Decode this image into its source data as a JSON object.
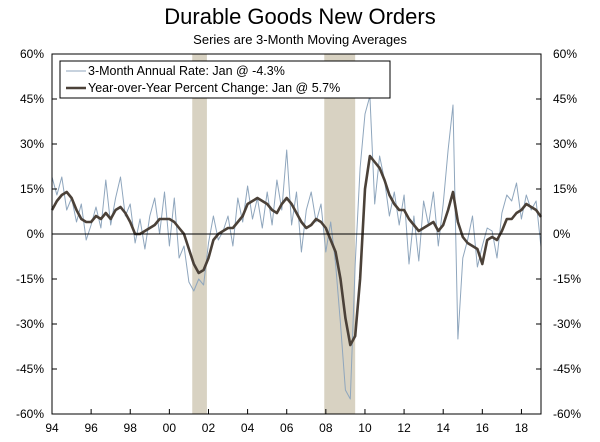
{
  "chart_data": {
    "type": "line",
    "title": "Durable Goods New Orders",
    "subtitle": "Series are 3-Month Moving Averages",
    "xlabel": "",
    "ylabel": "",
    "xlim": [
      1994.0,
      2019.0
    ],
    "ylim": [
      -60,
      60
    ],
    "x_ticks": [
      1994,
      1996,
      1998,
      2000,
      2002,
      2004,
      2006,
      2008,
      2010,
      2012,
      2014,
      2016,
      2018
    ],
    "x_tick_labels": [
      "94",
      "96",
      "98",
      "00",
      "02",
      "04",
      "06",
      "08",
      "10",
      "12",
      "14",
      "16",
      "18"
    ],
    "y_ticks": [
      -60,
      -45,
      -30,
      -15,
      0,
      15,
      30,
      45,
      60
    ],
    "y_tick_labels": [
      "-60%",
      "-45%",
      "-30%",
      "-15%",
      "0%",
      "15%",
      "30%",
      "45%",
      "60%"
    ],
    "recessions": [
      [
        2001.17,
        2001.92
      ],
      [
        2007.92,
        2009.5
      ]
    ],
    "colors": {
      "recession": "#d8d2c2",
      "annual_rate": "#8fa6bd",
      "yoy": "#4b4138",
      "axis": "#000000",
      "zero_line": "#000000"
    },
    "series": [
      {
        "name": "3-Month Annual Rate: Jan @ -4.3%",
        "values": [
          [
            1994.0,
            19
          ],
          [
            1994.25,
            13
          ],
          [
            1994.5,
            19
          ],
          [
            1994.75,
            8
          ],
          [
            1995.0,
            12
          ],
          [
            1995.25,
            4
          ],
          [
            1995.5,
            10
          ],
          [
            1995.75,
            -2
          ],
          [
            1996.0,
            3
          ],
          [
            1996.25,
            9
          ],
          [
            1996.5,
            2
          ],
          [
            1996.75,
            18
          ],
          [
            1997.0,
            3
          ],
          [
            1997.25,
            12
          ],
          [
            1997.5,
            19
          ],
          [
            1997.75,
            6
          ],
          [
            1998.0,
            10
          ],
          [
            1998.25,
            -3
          ],
          [
            1998.5,
            5
          ],
          [
            1998.75,
            -5
          ],
          [
            1999.0,
            6
          ],
          [
            1999.25,
            12
          ],
          [
            1999.5,
            0
          ],
          [
            1999.75,
            14
          ],
          [
            2000.0,
            -4
          ],
          [
            2000.25,
            12
          ],
          [
            2000.5,
            -8
          ],
          [
            2000.75,
            -4
          ],
          [
            2001.0,
            -16
          ],
          [
            2001.25,
            -19
          ],
          [
            2001.5,
            -15
          ],
          [
            2001.75,
            -17
          ],
          [
            2002.0,
            -3
          ],
          [
            2002.25,
            6
          ],
          [
            2002.5,
            -2
          ],
          [
            2002.75,
            1
          ],
          [
            2003.0,
            6
          ],
          [
            2003.25,
            -4
          ],
          [
            2003.5,
            12
          ],
          [
            2003.75,
            4
          ],
          [
            2004.0,
            16
          ],
          [
            2004.25,
            5
          ],
          [
            2004.5,
            12
          ],
          [
            2004.75,
            2
          ],
          [
            2005.0,
            14
          ],
          [
            2005.25,
            3
          ],
          [
            2005.5,
            18
          ],
          [
            2005.75,
            8
          ],
          [
            2006.0,
            28
          ],
          [
            2006.25,
            3
          ],
          [
            2006.5,
            14
          ],
          [
            2006.75,
            -6
          ],
          [
            2007.0,
            8
          ],
          [
            2007.25,
            14
          ],
          [
            2007.5,
            4
          ],
          [
            2007.75,
            10
          ],
          [
            2008.0,
            -6
          ],
          [
            2008.25,
            4
          ],
          [
            2008.5,
            -10
          ],
          [
            2008.75,
            -30
          ],
          [
            2009.0,
            -52
          ],
          [
            2009.25,
            -55
          ],
          [
            2009.5,
            -10
          ],
          [
            2009.75,
            22
          ],
          [
            2010.0,
            40
          ],
          [
            2010.25,
            46
          ],
          [
            2010.5,
            10
          ],
          [
            2010.75,
            26
          ],
          [
            2011.0,
            18
          ],
          [
            2011.25,
            6
          ],
          [
            2011.5,
            14
          ],
          [
            2011.75,
            3
          ],
          [
            2012.0,
            13
          ],
          [
            2012.25,
            -10
          ],
          [
            2012.5,
            6
          ],
          [
            2012.75,
            -9
          ],
          [
            2013.0,
            11
          ],
          [
            2013.25,
            3
          ],
          [
            2013.5,
            14
          ],
          [
            2013.75,
            -4
          ],
          [
            2014.0,
            10
          ],
          [
            2014.25,
            28
          ],
          [
            2014.5,
            43
          ],
          [
            2014.75,
            -35
          ],
          [
            2015.0,
            -8
          ],
          [
            2015.25,
            -2
          ],
          [
            2015.5,
            6
          ],
          [
            2015.75,
            -11
          ],
          [
            2016.0,
            -4
          ],
          [
            2016.25,
            2
          ],
          [
            2016.5,
            1
          ],
          [
            2016.75,
            -8
          ],
          [
            2017.0,
            7
          ],
          [
            2017.25,
            13
          ],
          [
            2017.5,
            11
          ],
          [
            2017.75,
            17
          ],
          [
            2018.0,
            5
          ],
          [
            2018.25,
            13
          ],
          [
            2018.5,
            8
          ],
          [
            2018.75,
            11
          ],
          [
            2019.0,
            -4.3
          ]
        ]
      },
      {
        "name": "Year-over-Year Percent Change: Jan @ 5.7%",
        "values": [
          [
            1994.0,
            8
          ],
          [
            1994.25,
            11
          ],
          [
            1994.5,
            13
          ],
          [
            1994.75,
            14
          ],
          [
            1995.0,
            12
          ],
          [
            1995.25,
            8
          ],
          [
            1995.5,
            5
          ],
          [
            1995.75,
            4
          ],
          [
            1996.0,
            4
          ],
          [
            1996.25,
            6
          ],
          [
            1996.5,
            5
          ],
          [
            1996.75,
            7
          ],
          [
            1997.0,
            5
          ],
          [
            1997.25,
            8
          ],
          [
            1997.5,
            9
          ],
          [
            1997.75,
            7
          ],
          [
            1998.0,
            4
          ],
          [
            1998.25,
            0
          ],
          [
            1998.5,
            0
          ],
          [
            1998.75,
            1
          ],
          [
            1999.0,
            2
          ],
          [
            1999.25,
            3
          ],
          [
            1999.5,
            5
          ],
          [
            1999.75,
            5
          ],
          [
            2000.0,
            5
          ],
          [
            2000.25,
            4
          ],
          [
            2000.5,
            2
          ],
          [
            2000.75,
            0
          ],
          [
            2001.0,
            -5
          ],
          [
            2001.25,
            -10
          ],
          [
            2001.5,
            -13
          ],
          [
            2001.75,
            -12
          ],
          [
            2002.0,
            -8
          ],
          [
            2002.25,
            -2
          ],
          [
            2002.5,
            0
          ],
          [
            2002.75,
            1
          ],
          [
            2003.0,
            2
          ],
          [
            2003.25,
            2
          ],
          [
            2003.5,
            4
          ],
          [
            2003.75,
            6
          ],
          [
            2004.0,
            10
          ],
          [
            2004.25,
            11
          ],
          [
            2004.5,
            12
          ],
          [
            2004.75,
            11
          ],
          [
            2005.0,
            10
          ],
          [
            2005.25,
            8
          ],
          [
            2005.5,
            7
          ],
          [
            2005.75,
            10
          ],
          [
            2006.0,
            12
          ],
          [
            2006.25,
            10
          ],
          [
            2006.5,
            7
          ],
          [
            2006.75,
            4
          ],
          [
            2007.0,
            2
          ],
          [
            2007.25,
            3
          ],
          [
            2007.5,
            5
          ],
          [
            2007.75,
            4
          ],
          [
            2008.0,
            2
          ],
          [
            2008.25,
            -2
          ],
          [
            2008.5,
            -6
          ],
          [
            2008.75,
            -15
          ],
          [
            2009.0,
            -28
          ],
          [
            2009.25,
            -37
          ],
          [
            2009.5,
            -34
          ],
          [
            2009.75,
            -15
          ],
          [
            2010.0,
            15
          ],
          [
            2010.25,
            26
          ],
          [
            2010.5,
            24
          ],
          [
            2010.75,
            22
          ],
          [
            2011.0,
            18
          ],
          [
            2011.25,
            13
          ],
          [
            2011.5,
            10
          ],
          [
            2011.75,
            8
          ],
          [
            2012.0,
            8
          ],
          [
            2012.25,
            5
          ],
          [
            2012.5,
            3
          ],
          [
            2012.75,
            1
          ],
          [
            2013.0,
            2
          ],
          [
            2013.25,
            3
          ],
          [
            2013.5,
            4
          ],
          [
            2013.75,
            1
          ],
          [
            2014.0,
            3
          ],
          [
            2014.25,
            8
          ],
          [
            2014.5,
            14
          ],
          [
            2014.75,
            4
          ],
          [
            2015.0,
            -1
          ],
          [
            2015.25,
            -3
          ],
          [
            2015.5,
            -4
          ],
          [
            2015.75,
            -5
          ],
          [
            2016.0,
            -10
          ],
          [
            2016.25,
            -2
          ],
          [
            2016.5,
            -1
          ],
          [
            2016.75,
            -2
          ],
          [
            2017.0,
            1
          ],
          [
            2017.25,
            5
          ],
          [
            2017.5,
            5
          ],
          [
            2017.75,
            7
          ],
          [
            2018.0,
            8
          ],
          [
            2018.25,
            10
          ],
          [
            2018.5,
            9
          ],
          [
            2018.75,
            8
          ],
          [
            2019.0,
            5.7
          ]
        ]
      }
    ]
  }
}
